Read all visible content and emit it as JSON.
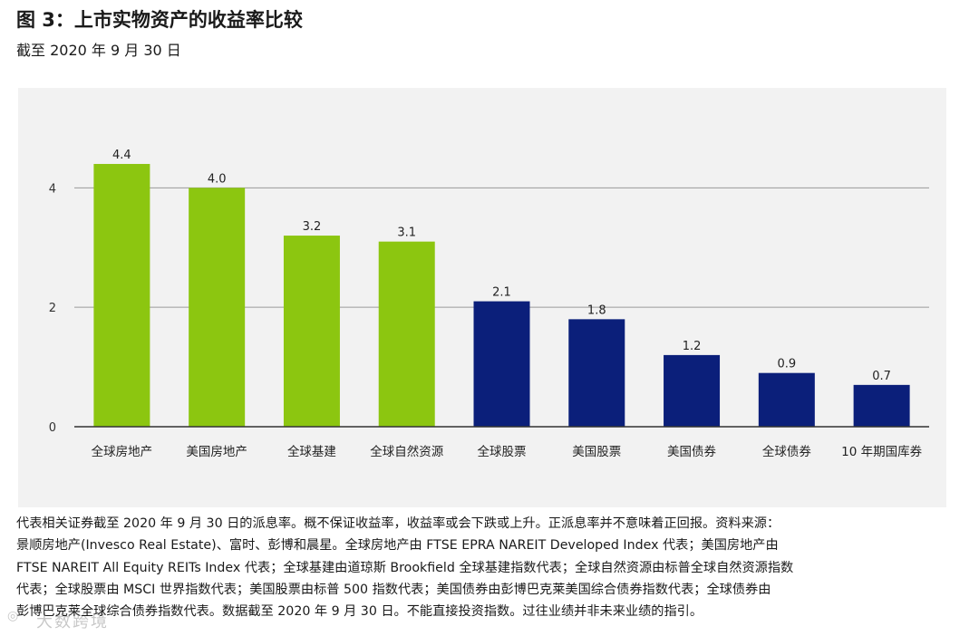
{
  "header": {
    "title": "图 3：上市实物资产的收益率比较",
    "subtitle": "截至 2020 年 9 月 30 日"
  },
  "chart_data": {
    "type": "bar",
    "title": "图 3：上市实物资产的收益率比较",
    "subtitle": "截至 2020 年 9 月 30 日",
    "xlabel": "",
    "ylabel": "",
    "ylim": [
      0,
      4.9
    ],
    "yticks": [
      0,
      2,
      4
    ],
    "grid": true,
    "categories": [
      "全球房地产",
      "美国房地产",
      "全球基建",
      "全球自然资源",
      "全球股票",
      "美国股票",
      "美国债券",
      "全球债券",
      "10 年期国库券"
    ],
    "values": [
      4.4,
      4.0,
      3.2,
      3.1,
      2.1,
      1.8,
      1.2,
      0.9,
      0.7
    ],
    "data_labels": [
      "4.4",
      "4.0",
      "3.2",
      "3.1",
      "2.1",
      "1.8",
      "1.2",
      "0.9",
      "0.7"
    ],
    "colors": [
      "#8cc610",
      "#8cc610",
      "#8cc610",
      "#8cc610",
      "#0b1f7a",
      "#0b1f7a",
      "#0b1f7a",
      "#0b1f7a",
      "#0b1f7a"
    ],
    "grid_color": "#9a9a9a",
    "axis_color": "#333333"
  },
  "notes": {
    "lines": [
      "代表相关证券截至 2020 年 9 月 30 日的派息率。概不保证收益率，收益率或会下跌或上升。正派息率并不意味着正回报。资料来源：",
      "景顺房地产(Invesco Real Estate)、富时、彭博和晨星。全球房地产由 FTSE EPRA NAREIT Developed Index 代表；美国房地产由",
      "FTSE NAREIT All Equity REITs Index 代表；全球基建由道琼斯 Brookfield 全球基建指数代表；全球自然资源由标普全球自然资源指数",
      "代表；全球股票由 MSCI 世界指数代表；美国股票由标普 500 指数代表；美国债券由彭博巴克莱美国综合债券指数代表；全球债券由",
      "彭博巴克莱全球综合债券指数代表。数据截至 2020 年 9 月 30 日。不能直接投资指数。过往业绩并非未来业绩的指引。"
    ]
  },
  "watermark": {
    "text": "大数跨境"
  }
}
